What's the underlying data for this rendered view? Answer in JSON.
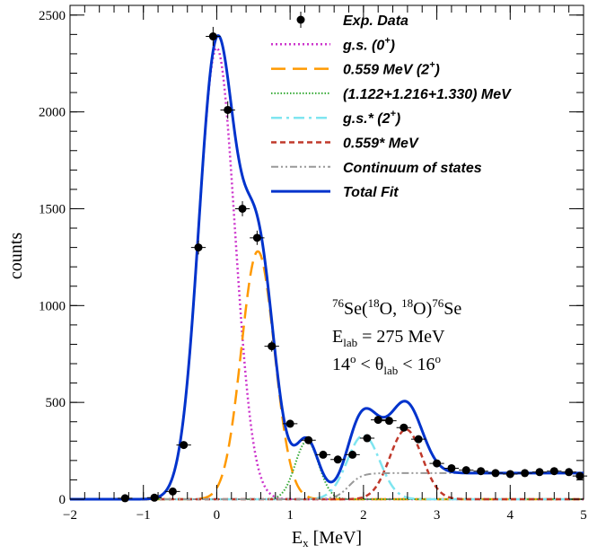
{
  "chart_data": {
    "type": "scatter",
    "xlabel": "E",
    "xlabel_sub": "x",
    "xlabel_unit": " [MeV]",
    "ylabel": "counts",
    "xlim": [
      -2,
      5
    ],
    "ylim": [
      0,
      2550
    ],
    "x_ticks": [
      -2,
      -1,
      0,
      1,
      2,
      3,
      4,
      5
    ],
    "x_tick_labels": [
      "−2",
      "−1",
      "0",
      "1",
      "2",
      "3",
      "4",
      "5"
    ],
    "y_ticks": [
      0,
      500,
      1000,
      1500,
      2000,
      2500
    ],
    "y_tick_labels": [
      "0",
      "500",
      "1000",
      "1500",
      "2000",
      "2500"
    ],
    "grid": false,
    "legend_position": "top-right",
    "legend": [
      {
        "key": "exp",
        "text": "Exp. Data",
        "style": "marker",
        "color": "#000000"
      },
      {
        "key": "gs",
        "text": "g.s. (0",
        "sup": "+",
        "tail": ")",
        "style": "dotted",
        "color": "#cc33cc"
      },
      {
        "key": "s559",
        "text": "0.559 MeV (2",
        "sup": "+",
        "tail": ")",
        "style": "longdash",
        "color": "#ff9900"
      },
      {
        "key": "mult",
        "text": "(1.122+1.216+1.330) MeV",
        "style": "finedot",
        "color": "#33aa33"
      },
      {
        "key": "gsstar",
        "text": "g.s.* (2",
        "sup": "+",
        "tail": ")",
        "style": "dashdot",
        "color": "#7fe5f0"
      },
      {
        "key": "s559star",
        "text": "0.559* MeV",
        "style": "dashed",
        "color": "#c0392b"
      },
      {
        "key": "cont",
        "text": "Continuum of states",
        "style": "dashdotdot",
        "color": "#999999"
      },
      {
        "key": "total",
        "text": "Total Fit",
        "style": "solid",
        "color": "#0033cc"
      }
    ],
    "exp_data": {
      "x": [
        -1.25,
        -0.85,
        -0.6,
        -0.45,
        -0.25,
        -0.05,
        0.15,
        0.35,
        0.55,
        0.75,
        1.0,
        1.25,
        1.45,
        1.65,
        1.85,
        2.05,
        2.2,
        2.35,
        2.55,
        2.75,
        3.0,
        3.2,
        3.4,
        3.6,
        3.8,
        4.0,
        4.2,
        4.4,
        4.6,
        4.8,
        4.95
      ],
      "y": [
        5,
        8,
        40,
        280,
        1300,
        2390,
        2010,
        1500,
        1350,
        790,
        390,
        305,
        230,
        205,
        230,
        315,
        410,
        405,
        370,
        310,
        185,
        160,
        150,
        145,
        135,
        130,
        135,
        140,
        145,
        140,
        120
      ],
      "yerr": [
        3,
        3,
        7,
        17,
        36,
        49,
        45,
        39,
        37,
        28,
        20,
        17,
        15,
        14,
        15,
        18,
        20,
        20,
        19,
        18,
        14,
        13,
        12,
        12,
        12,
        11,
        12,
        12,
        12,
        12,
        11
      ],
      "xerr": 0.1
    },
    "components": [
      {
        "key": "gs",
        "color": "#cc33cc",
        "style": "dotted",
        "peaks": [
          {
            "center": 0.0,
            "amp": 2330,
            "sigma": 0.245
          }
        ]
      },
      {
        "key": "s559",
        "color": "#ff9900",
        "style": "longdash",
        "peaks": [
          {
            "center": 0.56,
            "amp": 1280,
            "sigma": 0.225
          }
        ]
      },
      {
        "key": "mult",
        "color": "#33aa33",
        "style": "finedot",
        "peaks": [
          {
            "center": 1.23,
            "amp": 300,
            "sigma": 0.16
          }
        ]
      },
      {
        "key": "gsstar",
        "color": "#7fe5f0",
        "style": "dashdot",
        "peaks": [
          {
            "center": 2.0,
            "amp": 330,
            "sigma": 0.22
          }
        ]
      },
      {
        "key": "s559star",
        "color": "#c0392b",
        "style": "dashed",
        "peaks": [
          {
            "center": 2.58,
            "amp": 360,
            "sigma": 0.22
          }
        ]
      }
    ],
    "continuum": {
      "start": 1.8,
      "width": 0.35,
      "level": 135
    },
    "annotation": {
      "line1": {
        "sup1": "76",
        "t1": "Se(",
        "sup2": "18",
        "t2": "O,  ",
        "sup3": "18",
        "t3": "O)",
        "sup4": "76",
        "t4": "Se"
      },
      "line2": {
        "t1": "E",
        "sub": "lab",
        "t2": " = 275 MeV"
      },
      "line3": {
        "t1": "14",
        "sup1": "o",
        "t2": " < θ",
        "sub": "lab",
        "t3": " < 16",
        "sup2": "o"
      }
    }
  }
}
